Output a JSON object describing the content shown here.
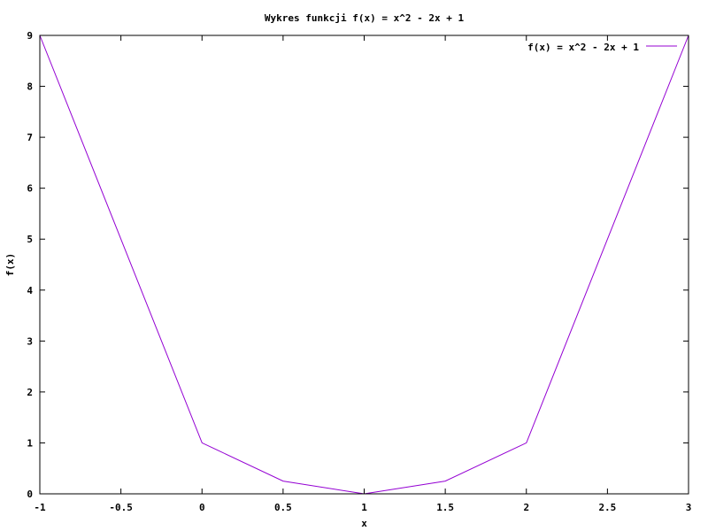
{
  "chart_data": {
    "type": "line",
    "title": "Wykres funkcji f(x) = x^2 - 2x + 1",
    "xlabel": "x",
    "ylabel": "f(x)",
    "xlim": [
      -1,
      3
    ],
    "ylim": [
      0,
      9
    ],
    "xticks": [
      -1,
      -0.5,
      0,
      0.5,
      1,
      1.5,
      2,
      2.5,
      3
    ],
    "yticks": [
      0,
      1,
      2,
      3,
      4,
      5,
      6,
      7,
      8,
      9
    ],
    "grid": false,
    "legend_position": "top-right",
    "series": [
      {
        "name": "f(x) = x^2 - 2x + 1",
        "color": "#9400d3",
        "x": [
          -1,
          0,
          0.5,
          1,
          1.5,
          2,
          3
        ],
        "y": [
          9,
          1,
          0.25,
          0,
          0.25,
          1,
          9
        ]
      }
    ]
  }
}
